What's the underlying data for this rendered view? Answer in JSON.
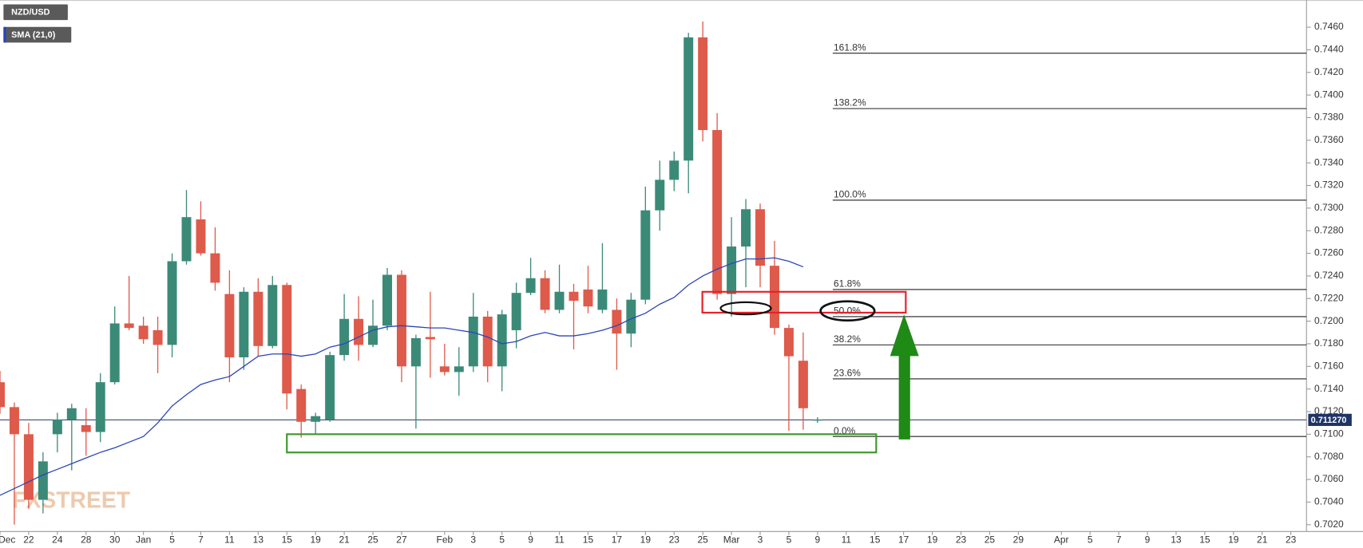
{
  "chart_data": {
    "type": "candlestick",
    "categories": [
      "Dec",
      null,
      "22",
      null,
      "24",
      null,
      "28",
      null,
      "30",
      null,
      "Jan",
      null,
      "5",
      null,
      "7",
      null,
      "11",
      null,
      "13",
      null,
      "15",
      null,
      "19",
      null,
      "21",
      null,
      "25",
      null,
      "27",
      null,
      null,
      "Feb",
      null,
      "3",
      null,
      "5",
      null,
      "9",
      null,
      "11",
      null,
      "15",
      null,
      "17",
      null,
      "19",
      null,
      "23",
      null,
      "25",
      null,
      "Mar",
      null,
      "3",
      null,
      "5",
      null,
      "9",
      null,
      "11",
      null,
      "15",
      null,
      "17",
      null,
      "19",
      null,
      "23",
      null,
      "25",
      null,
      "29",
      null,
      null,
      "Apr",
      null,
      "5",
      null,
      "7",
      null,
      "9",
      null,
      "13",
      null,
      "15",
      null,
      "19",
      null,
      "21",
      null,
      "23"
    ],
    "series": [
      {
        "name": "NZD/USD",
        "type": "candlestick",
        "up_color": "#3b8a78",
        "down_color": "#de5a4b",
        "open": [
          0.7146,
          0.7124,
          0.71,
          0.7042,
          0.71,
          0.7113,
          0.7108,
          0.7102,
          0.7146,
          0.7198,
          0.7196,
          0.7192,
          0.7179,
          0.7253,
          0.729,
          0.726,
          0.7224,
          0.7168,
          0.7226,
          0.7178,
          0.7232,
          0.714,
          0.7111,
          0.7113,
          0.717,
          0.7202,
          0.7179,
          0.7196,
          0.7241,
          0.716,
          0.7186,
          0.716,
          0.7155,
          0.716,
          0.7204,
          0.716,
          0.7192,
          0.7225,
          0.7238,
          0.721,
          0.7226,
          0.7228,
          0.721,
          0.721,
          0.7189,
          0.7219,
          0.7298,
          0.7325,
          0.7342,
          0.7451,
          0.7369,
          0.7224,
          0.7266,
          0.7299,
          0.7249,
          0.7194,
          0.7165,
          0.7112,
          null,
          null,
          null,
          null,
          null,
          null,
          null,
          null,
          null,
          null,
          null,
          null,
          null,
          null,
          null,
          null,
          null,
          null,
          null,
          null,
          null,
          null,
          null,
          null,
          null,
          null,
          null,
          null,
          null,
          null,
          null,
          null,
          null
        ],
        "high": [
          0.7156,
          0.7128,
          0.711,
          0.7084,
          0.7119,
          0.7127,
          0.7123,
          0.7154,
          0.7213,
          0.724,
          0.7204,
          0.7204,
          0.726,
          0.7316,
          0.7306,
          0.7283,
          0.7245,
          0.723,
          0.7238,
          0.724,
          0.7234,
          0.7144,
          0.7119,
          0.7173,
          0.7224,
          0.7222,
          0.7219,
          0.7247,
          0.7245,
          0.7188,
          0.7226,
          0.718,
          0.7177,
          0.7225,
          0.7209,
          0.721,
          0.7234,
          0.7256,
          0.7245,
          0.725,
          0.7233,
          0.7249,
          0.7269,
          0.722,
          0.7225,
          0.7319,
          0.7342,
          0.735,
          0.7455,
          0.7465,
          0.7384,
          0.7292,
          0.7308,
          0.7304,
          0.7271,
          0.7197,
          0.719,
          0.7115,
          null,
          null,
          null,
          null,
          null,
          null,
          null,
          null,
          null,
          null,
          null,
          null,
          null,
          null,
          null,
          null,
          null,
          null,
          null,
          null,
          null,
          null,
          null,
          null,
          null,
          null,
          null,
          null,
          null,
          null,
          null,
          null,
          null
        ],
        "low": [
          0.7118,
          0.702,
          0.7034,
          0.703,
          0.7084,
          0.7068,
          0.7081,
          0.7093,
          0.7144,
          0.7192,
          0.718,
          0.7154,
          0.7168,
          0.725,
          0.7258,
          0.7227,
          0.7146,
          0.7157,
          0.7169,
          0.7176,
          0.7122,
          0.7097,
          0.71,
          0.7111,
          0.7165,
          0.7165,
          0.7177,
          0.7192,
          0.7146,
          0.7105,
          0.715,
          0.7152,
          0.7134,
          0.7155,
          0.7146,
          0.7138,
          0.7176,
          0.7223,
          0.7207,
          0.7207,
          0.7175,
          0.7207,
          0.7207,
          0.7157,
          0.7177,
          0.7215,
          0.728,
          0.7315,
          0.7313,
          0.7359,
          0.7219,
          0.7204,
          0.723,
          0.723,
          0.7188,
          0.7103,
          0.7104,
          0.711,
          null,
          null,
          null,
          null,
          null,
          null,
          null,
          null,
          null,
          null,
          null,
          null,
          null,
          null,
          null,
          null,
          null,
          null,
          null,
          null,
          null,
          null,
          null,
          null,
          null,
          null,
          null,
          null,
          null,
          null,
          null,
          null,
          null
        ],
        "close": [
          0.7124,
          0.71,
          0.7042,
          0.7076,
          0.7113,
          0.7123,
          0.7102,
          0.7146,
          0.7198,
          0.7194,
          0.7184,
          0.7179,
          0.7253,
          0.7292,
          0.726,
          0.7234,
          0.7168,
          0.7226,
          0.7178,
          0.7232,
          0.7136,
          0.7111,
          0.7116,
          0.717,
          0.7202,
          0.7179,
          0.7196,
          0.7241,
          0.716,
          0.7185,
          0.7184,
          0.7155,
          0.716,
          0.7204,
          0.716,
          0.7206,
          0.7225,
          0.7238,
          0.721,
          0.7226,
          0.7218,
          0.7213,
          0.7228,
          0.7189,
          0.7219,
          0.7298,
          0.7325,
          0.7342,
          0.7451,
          0.7369,
          0.7224,
          0.7266,
          0.7299,
          0.7249,
          0.7194,
          0.7169,
          0.7123,
          0.7113,
          null,
          null,
          null,
          null,
          null,
          null,
          null,
          null,
          null,
          null,
          null,
          null,
          null,
          null,
          null,
          null,
          null,
          null,
          null,
          null,
          null,
          null,
          null,
          null,
          null,
          null,
          null,
          null,
          null,
          null,
          null,
          null,
          null
        ]
      },
      {
        "name": "SMA (21,0)",
        "type": "line",
        "color": "#2b46b8",
        "values": [
          0.7046,
          0.7052,
          0.7058,
          0.7064,
          0.7069,
          0.7074,
          0.7079,
          0.7084,
          0.7088,
          0.7093,
          0.7098,
          0.711,
          0.7125,
          0.7135,
          0.7144,
          0.7148,
          0.7151,
          0.716,
          0.7169,
          0.7171,
          0.7171,
          0.7169,
          0.7171,
          0.7177,
          0.718,
          0.7186,
          0.7192,
          0.7195,
          0.7196,
          0.7195,
          0.7194,
          0.7194,
          0.7192,
          0.719,
          0.7186,
          0.718,
          0.7182,
          0.7187,
          0.719,
          0.7187,
          0.7187,
          0.7189,
          0.7192,
          0.7196,
          0.7202,
          0.7207,
          0.7215,
          0.7221,
          0.7232,
          0.724,
          0.7246,
          0.7251,
          0.7255,
          0.7255,
          0.7256,
          0.7253,
          0.7248,
          null,
          null,
          null,
          null,
          null,
          null,
          null,
          null,
          null,
          null,
          null,
          null,
          null,
          null,
          null,
          null,
          null,
          null,
          null,
          null,
          null,
          null,
          null,
          null,
          null,
          null,
          null,
          null,
          null,
          null,
          null,
          null,
          null,
          null
        ]
      }
    ],
    "ylim": [
      0.7014,
      0.7484
    ],
    "yticks": [
      {
        "value": 0.702,
        "label": "0.7020"
      },
      {
        "value": 0.704,
        "label": "0.7040"
      },
      {
        "value": 0.706,
        "label": "0.7060"
      },
      {
        "value": 0.708,
        "label": "0.7080"
      },
      {
        "value": 0.71,
        "label": "0.7100"
      },
      {
        "value": 0.712,
        "label": "0.7120"
      },
      {
        "value": 0.714,
        "label": "0.7140"
      },
      {
        "value": 0.716,
        "label": "0.7160"
      },
      {
        "value": 0.718,
        "label": "0.7180"
      },
      {
        "value": 0.72,
        "label": "0.7200"
      },
      {
        "value": 0.722,
        "label": "0.7220"
      },
      {
        "value": 0.724,
        "label": "0.7240"
      },
      {
        "value": 0.726,
        "label": "0.7260"
      },
      {
        "value": 0.728,
        "label": "0.7280"
      },
      {
        "value": 0.73,
        "label": "0.7300"
      },
      {
        "value": 0.732,
        "label": "0.7320"
      },
      {
        "value": 0.734,
        "label": "0.7340"
      },
      {
        "value": 0.736,
        "label": "0.7360"
      },
      {
        "value": 0.738,
        "label": "0.7380"
      },
      {
        "value": 0.74,
        "label": "0.7400"
      },
      {
        "value": 0.742,
        "label": "0.7420"
      },
      {
        "value": 0.744,
        "label": "0.7440"
      },
      {
        "value": 0.746,
        "label": "0.7460"
      }
    ],
    "last_price": {
      "value": 0.71127,
      "label": "0.711270",
      "color": "#1f3466"
    },
    "fib_levels": [
      {
        "label": "161.8%",
        "value": 0.7437
      },
      {
        "label": "138.2%",
        "value": 0.7388
      },
      {
        "label": "100.0%",
        "value": 0.7307
      },
      {
        "label": "61.8%",
        "value": 0.7228
      },
      {
        "label": "50.0%",
        "value": 0.7204
      },
      {
        "label": "38.2%",
        "value": 0.7179
      },
      {
        "label": "23.6%",
        "value": 0.7149
      },
      {
        "label": "0.0%",
        "value": 0.7098
      }
    ],
    "watermark": "FXSTREET"
  }
}
